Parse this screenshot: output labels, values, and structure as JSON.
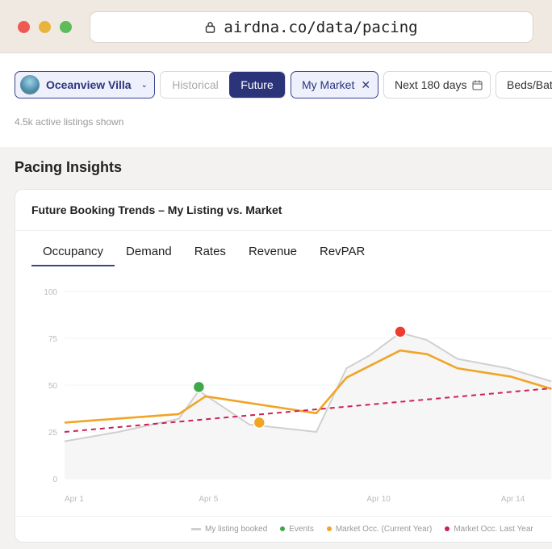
{
  "browser": {
    "url": "airdna.co/data/pacing",
    "lock_icon": "lock-icon"
  },
  "filters": {
    "listing": "Oceanview Villa",
    "toggle": [
      "Historical",
      "Future"
    ],
    "toggle_selected": "Future",
    "market": "My Market",
    "date_range": "Next 180 days",
    "beds": "Beds/Bat"
  },
  "listings_shown": "4.5k active listings shown",
  "section_title": "Pacing Insights",
  "card": {
    "title": "Future Booking Trends – My Listing vs. Market",
    "tabs": [
      "Occupancy",
      "Demand",
      "Rates",
      "Revenue",
      "RevPAR"
    ],
    "active_tab": "Occupancy"
  },
  "chart_data": {
    "type": "line",
    "ylim": [
      0,
      100
    ],
    "y_ticks": [
      "0",
      "25",
      "50",
      "75",
      "100"
    ],
    "x_ticks": [
      {
        "day": 1,
        "label": "Apr 1"
      },
      {
        "day": 5,
        "label": "Apr 5"
      },
      {
        "day": 10,
        "label": "Apr 10"
      },
      {
        "day": 14,
        "label": "Apr 14"
      }
    ],
    "grid": true,
    "legend_placement": "bottom",
    "series": [
      {
        "name": "My listing booked",
        "color": "#d0d0d0",
        "area": true,
        "x": [
          1,
          2.6,
          4.4,
          5,
          6.5,
          8.5,
          9.4,
          10.1,
          11,
          11.8,
          12.7,
          14.2,
          15.5
        ],
        "y": [
          20,
          25,
          32,
          47,
          29,
          25,
          59,
          66,
          78,
          74,
          64,
          59,
          52
        ]
      },
      {
        "name": "Market Occ. (Current Year)",
        "color": "#f0a526",
        "x": [
          1,
          4.4,
          5.2,
          8.5,
          9.4,
          11,
          11.8,
          12.7,
          14.3,
          15.5
        ],
        "y": [
          30,
          34.5,
          44,
          35,
          54,
          68.5,
          66.5,
          59,
          54.5,
          48
        ]
      },
      {
        "name": "Market Occ. Last Year",
        "color": "#cc2255",
        "dashed": true,
        "x": [
          1,
          15.5
        ],
        "y": [
          25,
          48.3
        ]
      }
    ],
    "events": [
      {
        "x": 5,
        "y": 49,
        "color": "#3ea84a"
      },
      {
        "x": 6.8,
        "y": 30,
        "color": "#f0a526"
      },
      {
        "x": 11,
        "y": 78.5,
        "color": "#ee3b33"
      }
    ],
    "legend": [
      {
        "label": "My listing booked",
        "color": "#d0d0d0"
      },
      {
        "label": "Events",
        "color": "#3ea84a"
      },
      {
        "label": "Market Occ. (Current Year)",
        "color": "#f0a526"
      },
      {
        "label": "Market Occ. Last Year",
        "color": "#cc2255"
      }
    ]
  }
}
